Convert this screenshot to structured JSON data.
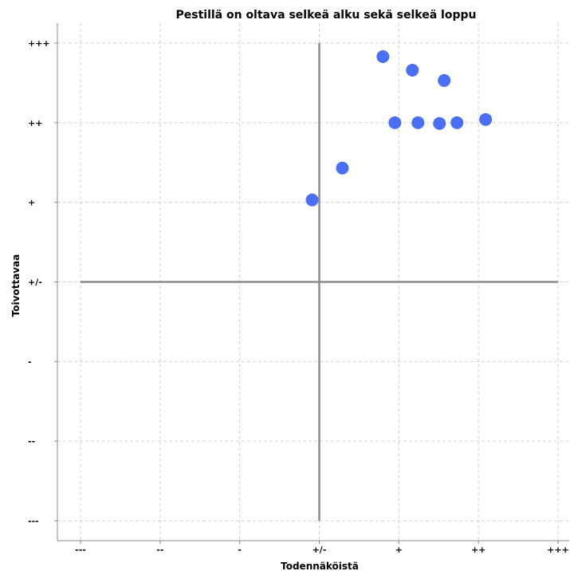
{
  "chart_data": {
    "type": "scatter",
    "title": "Pestillä on oltava selkeä alku sekä selkeä loppu",
    "xlabel": "Todennäköistä",
    "ylabel": "Toivottavaa",
    "x_tick_labels": [
      "---",
      "--",
      "-",
      "+/-",
      "+",
      "++",
      "+++"
    ],
    "y_tick_labels": [
      "---",
      "--",
      "-",
      "+/-",
      "+",
      "++",
      "+++"
    ],
    "xlim": [
      -3,
      3
    ],
    "ylim": [
      -3,
      3
    ],
    "grid": true,
    "crosshair_at": [
      0,
      0
    ],
    "point_color": "#4a6ff5",
    "points": [
      {
        "x": -0.09,
        "y": 1.03
      },
      {
        "x": 0.29,
        "y": 1.43
      },
      {
        "x": 0.8,
        "y": 2.83
      },
      {
        "x": 1.17,
        "y": 2.66
      },
      {
        "x": 1.57,
        "y": 2.53
      },
      {
        "x": 0.95,
        "y": 2.0
      },
      {
        "x": 1.24,
        "y": 2.0
      },
      {
        "x": 1.51,
        "y": 1.99
      },
      {
        "x": 1.73,
        "y": 2.0
      },
      {
        "x": 2.09,
        "y": 2.04
      }
    ]
  }
}
